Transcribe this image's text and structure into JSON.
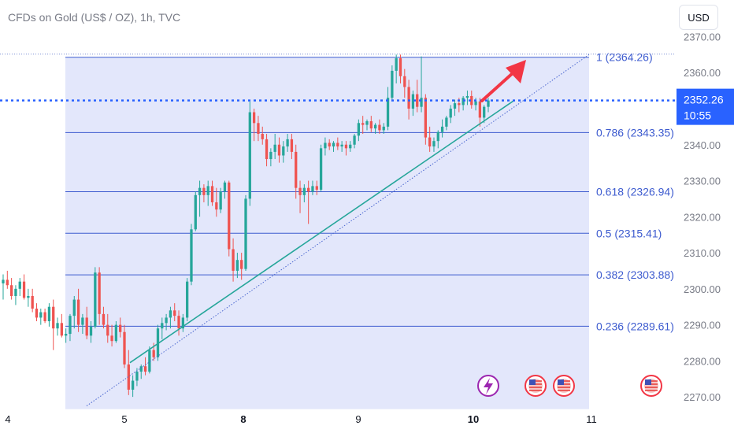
{
  "header": {
    "title": "CFDs on Gold (US$ / OZ), 1h, TVC",
    "currency_button": "USD"
  },
  "price_marker": {
    "value": "2352.26",
    "countdown": "10:55"
  },
  "colors": {
    "up": "#26a69a",
    "down": "#ef5350",
    "fib_fill": "#e3e7fb",
    "fib_line": "#3d5bcf",
    "price_line": "#2962ff",
    "trend_line": "#26a69a",
    "arrow": "#f23645"
  },
  "icons": [
    "lightning-icon",
    "us-flag-icon",
    "us-flag-icon",
    "us-flag-icon"
  ],
  "chart_data": {
    "type": "candlestick",
    "title": "CFDs on Gold (US$ / OZ), 1h, TVC",
    "y_axis": {
      "ticks": [
        2270,
        2280,
        2290,
        2300,
        2310,
        2320,
        2330,
        2340,
        2350,
        2360,
        2370
      ],
      "tick_labels": [
        "2270.00",
        "2280.00",
        "2290.00",
        "2300.00",
        "2310.00",
        "2320.00",
        "2330.00",
        "2340.00",
        "2350.00",
        "2360.00",
        "2370.00"
      ],
      "range": [
        2268.5,
        2372.5
      ]
    },
    "x_axis": {
      "labels": [
        "4",
        "5",
        "8",
        "9",
        "10",
        "11"
      ]
    },
    "fibonacci_levels": [
      {
        "ratio": "1",
        "price": 2364.26,
        "label": "1 (2364.26)"
      },
      {
        "ratio": "0.786",
        "price": 2343.35,
        "label": "0.786 (2343.35)"
      },
      {
        "ratio": "0.618",
        "price": 2326.94,
        "label": "0.618 (2326.94)"
      },
      {
        "ratio": "0.5",
        "price": 2315.41,
        "label": "0.5 (2315.41)"
      },
      {
        "ratio": "0.382",
        "price": 2303.88,
        "label": "0.382 (2303.88)"
      },
      {
        "ratio": "0.236",
        "price": 2289.61,
        "label": "0.236 (2289.61)"
      }
    ],
    "fibonacci_zero_level": 2266.6,
    "current_price": 2352.26,
    "candles": [
      [
        2301.5,
        2304.0,
        2297.0,
        2302.5
      ],
      [
        2302.5,
        2305.0,
        2300.0,
        2301.0
      ],
      [
        2301.0,
        2303.0,
        2297.0,
        2298.0
      ],
      [
        2298.0,
        2301.0,
        2295.5,
        2300.0
      ],
      [
        2300.0,
        2303.0,
        2298.0,
        2302.0
      ],
      [
        2302.0,
        2304.0,
        2297.0,
        2297.5
      ],
      [
        2297.5,
        2300.0,
        2295.0,
        2298.0
      ],
      [
        2298.0,
        2300.0,
        2293.5,
        2294.5
      ],
      [
        2294.5,
        2296.0,
        2291.0,
        2292.0
      ],
      [
        2292.0,
        2294.5,
        2290.0,
        2293.5
      ],
      [
        2293.5,
        2294.5,
        2290.5,
        2291.0
      ],
      [
        2291.0,
        2296.0,
        2289.5,
        2295.0
      ],
      [
        2295.0,
        2297.0,
        2283.0,
        2289.0
      ],
      [
        2289.0,
        2292.0,
        2287.0,
        2290.5
      ],
      [
        2290.5,
        2293.0,
        2286.5,
        2287.0
      ],
      [
        2287.0,
        2289.0,
        2285.0,
        2287.5
      ],
      [
        2287.5,
        2293.0,
        2285.5,
        2292.5
      ],
      [
        2292.5,
        2298.0,
        2289.0,
        2297.0
      ],
      [
        2297.0,
        2300.0,
        2288.0,
        2290.0
      ],
      [
        2290.0,
        2293.0,
        2287.5,
        2292.0
      ],
      [
        2292.0,
        2295.0,
        2286.0,
        2287.0
      ],
      [
        2287.0,
        2291.0,
        2285.0,
        2289.5
      ],
      [
        2289.5,
        2306.0,
        2289.0,
        2304.5
      ],
      [
        2304.5,
        2306.0,
        2290.0,
        2293.0
      ],
      [
        2293.0,
        2295.0,
        2289.0,
        2290.0
      ],
      [
        2290.0,
        2293.0,
        2285.0,
        2287.0
      ],
      [
        2287.0,
        2290.0,
        2284.0,
        2285.5
      ],
      [
        2285.5,
        2291.0,
        2285.0,
        2290.0
      ],
      [
        2290.0,
        2292.0,
        2286.5,
        2288.0
      ],
      [
        2288.0,
        2290.0,
        2278.0,
        2279.0
      ],
      [
        2279.0,
        2283.0,
        2270.5,
        2272.0
      ],
      [
        2272.0,
        2276.0,
        2270.0,
        2274.5
      ],
      [
        2274.5,
        2278.0,
        2273.0,
        2277.0
      ],
      [
        2277.0,
        2279.0,
        2275.0,
        2278.5
      ],
      [
        2278.5,
        2281.0,
        2276.0,
        2277.0
      ],
      [
        2277.0,
        2284.0,
        2276.5,
        2283.0
      ],
      [
        2283.0,
        2285.0,
        2280.0,
        2281.0
      ],
      [
        2281.0,
        2290.0,
        2280.0,
        2289.0
      ],
      [
        2289.0,
        2292.0,
        2286.0,
        2290.5
      ],
      [
        2290.5,
        2293.0,
        2288.5,
        2292.0
      ],
      [
        2292.0,
        2295.0,
        2289.0,
        2294.0
      ],
      [
        2294.0,
        2296.0,
        2291.0,
        2292.5
      ],
      [
        2292.5,
        2294.0,
        2287.0,
        2289.0
      ],
      [
        2289.0,
        2293.0,
        2288.0,
        2292.0
      ],
      [
        2292.0,
        2303.0,
        2291.0,
        2302.0
      ],
      [
        2302.0,
        2318.0,
        2301.0,
        2316.5
      ],
      [
        2316.5,
        2327.0,
        2316.0,
        2326.0
      ],
      [
        2326.0,
        2330.0,
        2320.0,
        2328.0
      ],
      [
        2328.0,
        2329.0,
        2324.0,
        2326.0
      ],
      [
        2326.0,
        2330.0,
        2323.0,
        2328.5
      ],
      [
        2328.5,
        2330.0,
        2323.0,
        2324.0
      ],
      [
        2324.0,
        2328.0,
        2320.0,
        2322.0
      ],
      [
        2322.0,
        2328.0,
        2321.0,
        2327.0
      ],
      [
        2327.0,
        2330.0,
        2325.0,
        2329.5
      ],
      [
        2329.5,
        2330.0,
        2309.0,
        2311.0
      ],
      [
        2311.0,
        2314.0,
        2302.0,
        2305.0
      ],
      [
        2305.0,
        2310.0,
        2303.0,
        2308.0
      ],
      [
        2308.0,
        2310.0,
        2302.5,
        2305.5
      ],
      [
        2305.5,
        2326.0,
        2305.0,
        2325.0
      ],
      [
        2325.0,
        2352.0,
        2323.0,
        2349.0
      ],
      [
        2349.0,
        2350.0,
        2341.0,
        2346.0
      ],
      [
        2346.0,
        2348.0,
        2341.0,
        2343.0
      ],
      [
        2343.0,
        2345.0,
        2340.0,
        2341.5
      ],
      [
        2341.5,
        2343.0,
        2334.0,
        2336.0
      ],
      [
        2336.0,
        2339.0,
        2334.0,
        2338.0
      ],
      [
        2338.0,
        2343.0,
        2336.0,
        2340.0
      ],
      [
        2340.0,
        2342.0,
        2335.0,
        2337.0
      ],
      [
        2337.0,
        2341.0,
        2335.0,
        2339.5
      ],
      [
        2339.5,
        2343.0,
        2338.0,
        2341.5
      ],
      [
        2341.5,
        2343.0,
        2336.0,
        2338.0
      ],
      [
        2338.0,
        2340.0,
        2325.0,
        2328.0
      ],
      [
        2328.0,
        2330.0,
        2321.0,
        2326.0
      ],
      [
        2326.0,
        2329.0,
        2324.0,
        2328.0
      ],
      [
        2328.0,
        2330.0,
        2318.0,
        2327.0
      ],
      [
        2327.0,
        2330.0,
        2326.0,
        2328.5
      ],
      [
        2328.5,
        2330.0,
        2326.0,
        2327.5
      ],
      [
        2327.5,
        2340.0,
        2327.0,
        2339.0
      ],
      [
        2339.0,
        2342.0,
        2337.0,
        2340.5
      ],
      [
        2340.5,
        2341.5,
        2338.5,
        2339.5
      ],
      [
        2339.5,
        2341.0,
        2338.0,
        2340.5
      ],
      [
        2340.5,
        2342.0,
        2338.5,
        2339.5
      ],
      [
        2339.5,
        2341.0,
        2338.0,
        2340.0
      ],
      [
        2340.0,
        2341.0,
        2337.0,
        2339.0
      ],
      [
        2339.0,
        2341.0,
        2338.0,
        2340.0
      ],
      [
        2340.0,
        2343.0,
        2339.0,
        2342.5
      ],
      [
        2342.5,
        2347.0,
        2341.0,
        2346.0
      ],
      [
        2346.0,
        2348.0,
        2343.0,
        2345.5
      ],
      [
        2345.5,
        2347.0,
        2344.0,
        2346.5
      ],
      [
        2346.5,
        2348.0,
        2343.5,
        2344.5
      ],
      [
        2344.5,
        2346.0,
        2343.0,
        2345.5
      ],
      [
        2345.5,
        2347.0,
        2343.0,
        2344.0
      ],
      [
        2344.0,
        2346.0,
        2343.0,
        2345.0
      ],
      [
        2345.0,
        2356.0,
        2344.0,
        2353.0
      ],
      [
        2353.0,
        2362.0,
        2352.0,
        2360.5
      ],
      [
        2360.5,
        2365.0,
        2357.0,
        2364.0
      ],
      [
        2364.0,
        2365.0,
        2357.0,
        2359.0
      ],
      [
        2359.0,
        2361.0,
        2353.0,
        2356.0
      ],
      [
        2356.0,
        2358.0,
        2347.0,
        2350.0
      ],
      [
        2350.0,
        2355.0,
        2348.0,
        2354.0
      ],
      [
        2354.0,
        2358.0,
        2349.0,
        2350.5
      ],
      [
        2350.5,
        2364.5,
        2349.0,
        2353.0
      ],
      [
        2353.0,
        2354.0,
        2340.0,
        2342.0
      ],
      [
        2342.0,
        2345.0,
        2338.0,
        2339.5
      ],
      [
        2339.5,
        2342.0,
        2338.0,
        2341.0
      ],
      [
        2341.0,
        2344.0,
        2339.0,
        2343.5
      ],
      [
        2343.5,
        2347.0,
        2342.0,
        2345.0
      ],
      [
        2345.0,
        2348.0,
        2344.0,
        2347.5
      ],
      [
        2347.5,
        2351.0,
        2346.0,
        2350.0
      ],
      [
        2350.0,
        2352.5,
        2348.0,
        2351.5
      ],
      [
        2351.5,
        2353.0,
        2349.0,
        2351.0
      ],
      [
        2351.0,
        2353.5,
        2349.5,
        2353.0
      ],
      [
        2353.0,
        2355.0,
        2351.0,
        2353.5
      ],
      [
        2353.5,
        2355.0,
        2350.0,
        2351.0
      ],
      [
        2351.0,
        2353.0,
        2349.5,
        2352.0
      ],
      [
        2352.0,
        2353.0,
        2345.0,
        2347.5
      ],
      [
        2347.5,
        2351.0,
        2346.0,
        2350.5
      ],
      [
        2350.5,
        2353.0,
        2349.0,
        2352.26
      ]
    ]
  }
}
